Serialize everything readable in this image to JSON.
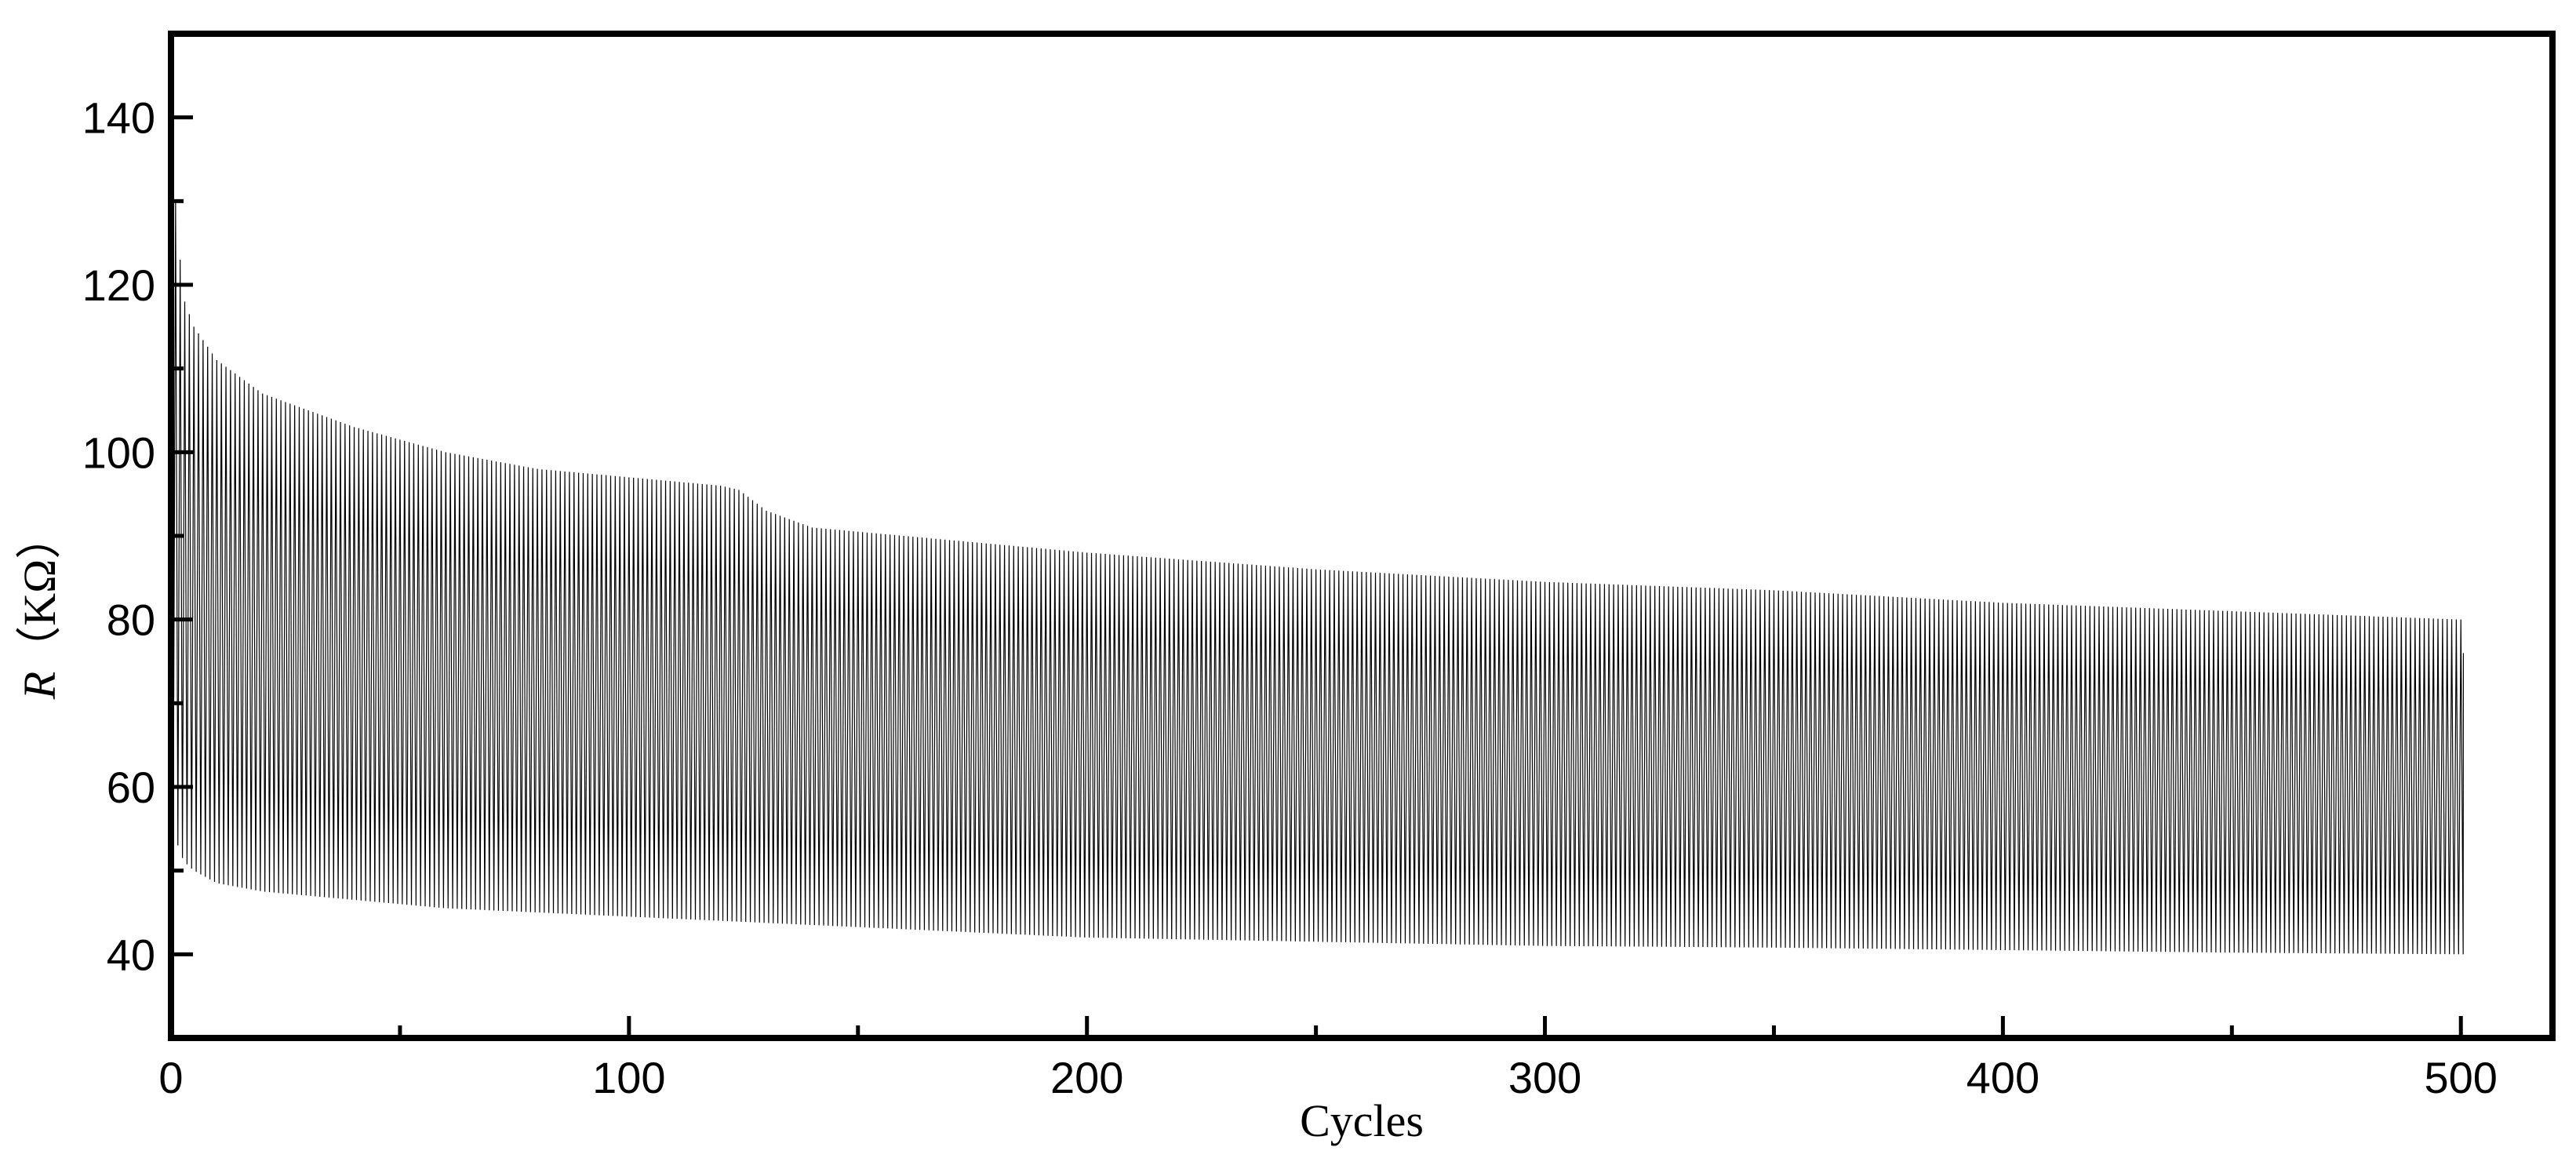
{
  "chart_data": {
    "type": "line",
    "xlabel": "Cycles",
    "ylabel_symbol": "R",
    "ylabel_unit": "（KΩ）",
    "xlim": [
      0,
      520
    ],
    "ylim": [
      30,
      150
    ],
    "x_ticks": [
      0,
      100,
      200,
      300,
      400,
      500
    ],
    "x_tick_labels": [
      "0",
      "100",
      "200",
      "300",
      "400",
      "500"
    ],
    "y_ticks": [
      40,
      60,
      80,
      100,
      120,
      140
    ],
    "y_tick_labels": [
      "40",
      "60",
      "80",
      "100",
      "120",
      "140"
    ],
    "grid": false,
    "legend": "none",
    "line_color": "#000000",
    "series": [
      {
        "cycles": 501,
        "peak_envelope": {
          "x": [
            0,
            1,
            2,
            3,
            5,
            10,
            20,
            40,
            60,
            80,
            100,
            120,
            124,
            130,
            140,
            160,
            200,
            250,
            300,
            350,
            400,
            450,
            500
          ],
          "y": [
            140,
            130,
            123,
            118,
            115,
            111,
            107,
            103,
            100,
            98,
            97,
            96,
            95.5,
            93,
            91,
            90,
            88,
            86,
            84.5,
            83.5,
            82,
            81,
            80
          ]
        },
        "valley_envelope": {
          "x": [
            0,
            1,
            2,
            3,
            5,
            10,
            20,
            40,
            60,
            80,
            100,
            120,
            140,
            160,
            200,
            250,
            300,
            350,
            400,
            450,
            500
          ],
          "y": [
            56,
            54,
            52,
            51,
            50,
            48.5,
            47.5,
            46.5,
            45.5,
            45,
            44.5,
            44,
            43.5,
            43,
            42,
            41.5,
            41,
            40.8,
            40.5,
            40.2,
            40
          ]
        }
      }
    ]
  }
}
